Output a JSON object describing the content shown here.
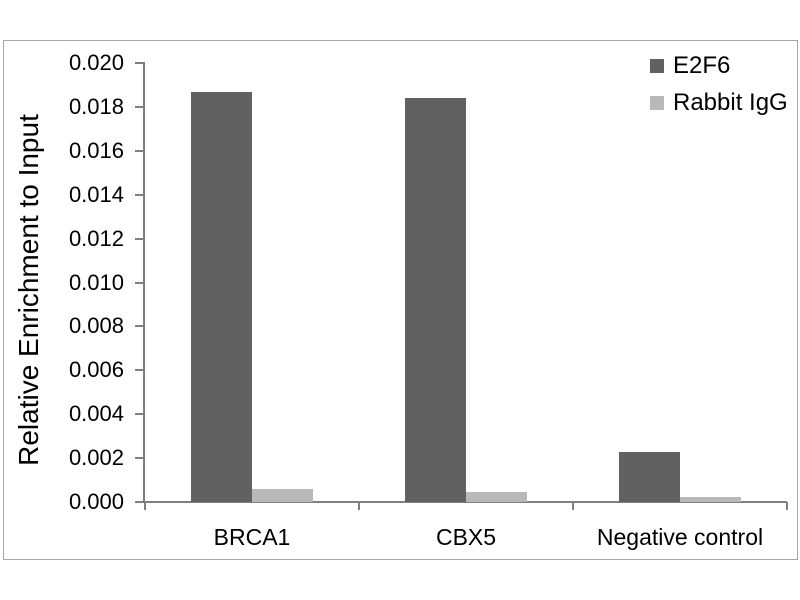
{
  "figure": {
    "background": "#ffffff",
    "frame_border_color": "#a6a6a6",
    "axis_color": "#7f7f7f",
    "text_color": "#000000"
  },
  "chart_data": {
    "type": "bar",
    "title": "",
    "xlabel": "",
    "ylabel": "Relative Enrichment to Input",
    "categories": [
      "BRCA1",
      "CBX5",
      "Negative control"
    ],
    "series": [
      {
        "name": "E2F6",
        "color": "#616161",
        "values": [
          0.0187,
          0.0184,
          0.0023
        ]
      },
      {
        "name": "Rabbit IgG",
        "color": "#b9b9b9",
        "values": [
          0.0006,
          0.00045,
          0.00025
        ]
      }
    ],
    "ylim": [
      0,
      0.02
    ],
    "ytick_step": 0.002,
    "ytick_decimals": 3,
    "grid": false,
    "legend_position": "top-right"
  }
}
